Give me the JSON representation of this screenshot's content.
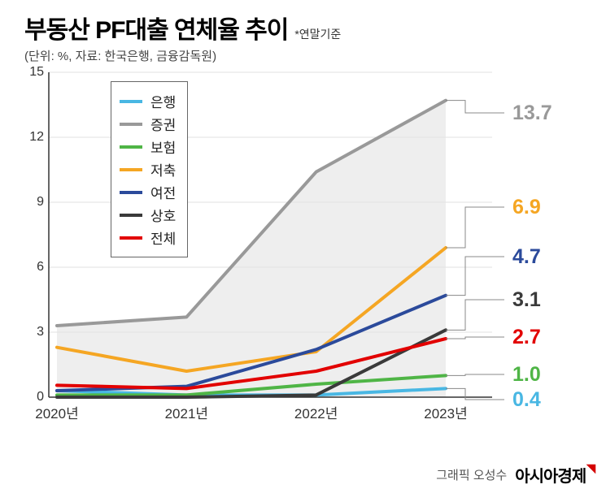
{
  "title": "부동산 PF대출 연체율 추이",
  "title_note": "*연말기준",
  "subtitle": "(단위: %, 자료: 한국은행, 금융감독원)",
  "chart": {
    "type": "line",
    "categories": [
      "2020년",
      "2021년",
      "2022년",
      "2023년"
    ],
    "ylim": [
      0,
      15
    ],
    "ytick_step": 3,
    "yticks": [
      0,
      3,
      6,
      9,
      12,
      15
    ],
    "grid_color": "#e2e2e2",
    "axis_color": "#333333",
    "background_fill_series": "증권",
    "background_fill_color": "#eeeeee",
    "line_width": 4,
    "value_label_fontsize": 25,
    "series": [
      {
        "name": "은행",
        "color": "#49b7e3",
        "values": [
          0.3,
          0.1,
          0.1,
          0.4
        ],
        "end_label": "0.4",
        "label_y_offset": 403
      },
      {
        "name": "증권",
        "color": "#999999",
        "values": [
          3.3,
          3.7,
          10.4,
          13.7
        ],
        "end_label": "13.7",
        "label_y_offset": 50
      },
      {
        "name": "보험",
        "color": "#4fb546",
        "values": [
          0.1,
          0.1,
          0.6,
          1.0
        ],
        "end_label": "1.0",
        "label_y_offset": 372
      },
      {
        "name": "저축",
        "color": "#f5a623",
        "values": [
          2.3,
          1.2,
          2.1,
          6.9
        ],
        "end_label": "6.9",
        "label_y_offset": 166
      },
      {
        "name": "여전",
        "color": "#2b4a9b",
        "values": [
          0.3,
          0.5,
          2.2,
          4.7
        ],
        "end_label": "4.7",
        "label_y_offset": 227
      },
      {
        "name": "상호",
        "color": "#3a3a3a",
        "values": [
          0.0,
          0.0,
          0.1,
          3.1
        ],
        "end_label": "3.1",
        "label_y_offset": 280
      },
      {
        "name": "전체",
        "color": "#e20000",
        "values": [
          0.55,
          0.4,
          1.2,
          2.7
        ],
        "end_label": "2.7",
        "label_y_offset": 326
      }
    ]
  },
  "credit": {
    "author": "그래픽 오성수",
    "brand": "아시아경제"
  }
}
